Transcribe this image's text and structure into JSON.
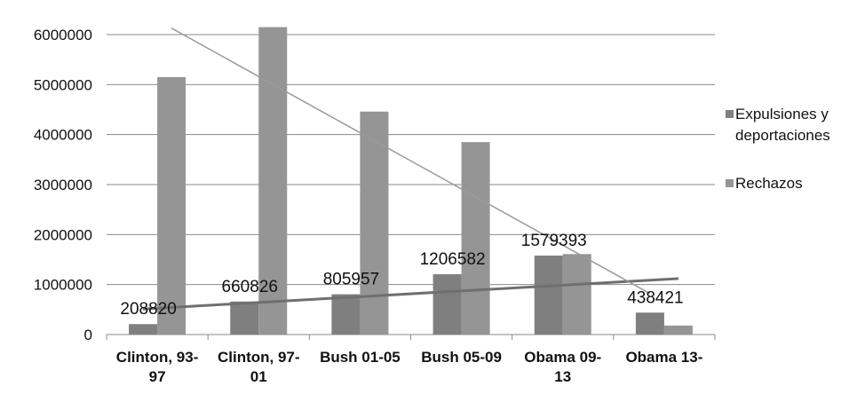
{
  "chart_data": {
    "type": "bar",
    "title": "",
    "xlabel": "",
    "ylabel": "",
    "ylim": [
      0,
      6000000
    ],
    "yticks": [
      0,
      1000000,
      2000000,
      3000000,
      4000000,
      5000000,
      6000000
    ],
    "ytick_labels": [
      "0",
      "1000000",
      "2000000",
      "3000000",
      "4000000",
      "5000000",
      "6000000"
    ],
    "grid": true,
    "legend_position": "right",
    "categories": [
      [
        "Clinton, 93-",
        "97"
      ],
      [
        "Clinton, 97-",
        "01"
      ],
      [
        "Bush 01-05"
      ],
      [
        "Bush 05-09"
      ],
      [
        "Obama 09-",
        "13"
      ],
      [
        "Obama 13-"
      ]
    ],
    "series": [
      {
        "name": [
          "Expulsiones y",
          "deportaciones"
        ],
        "values": [
          208820,
          660826,
          805957,
          1206582,
          1579393,
          438421
        ],
        "data_labels": [
          "208820",
          "660826",
          "805957",
          "1206582",
          "1579393",
          "438421"
        ],
        "color": "#7f7f7f"
      },
      {
        "name": [
          "Rechazos"
        ],
        "values": [
          5150000,
          6150000,
          4460000,
          3850000,
          1610000,
          180000
        ],
        "color": "#959595"
      }
    ],
    "trendlines": [
      {
        "series_index": 0,
        "from": 510000,
        "to": 1120000,
        "color": "#6f6f6f"
      },
      {
        "series_index": 1,
        "from": 6130000,
        "to": 820000,
        "color": "#9a9a9a"
      }
    ]
  }
}
